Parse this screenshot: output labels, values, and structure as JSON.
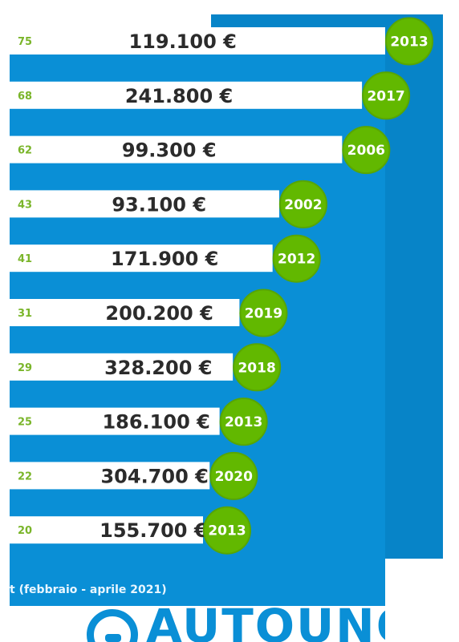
{
  "colors": {
    "panel": "#0a8fd6",
    "panel_side": "#0784c8",
    "bar": "#ffffff",
    "price_text": "#2b2b2b",
    "rank_text": "#7ab52a",
    "badge": "#62b800",
    "badge_text": "#ffffff"
  },
  "chart_data": {
    "type": "bar",
    "orientation": "horizontal",
    "rows": [
      {
        "rank": "75",
        "price": "119.100 €",
        "year": "2013"
      },
      {
        "rank": "68",
        "price": "241.800 €",
        "year": "2017"
      },
      {
        "rank": "62",
        "price": "99.300 €",
        "year": "2006"
      },
      {
        "rank": "43",
        "price": "93.100 €",
        "year": "2002"
      },
      {
        "rank": "41",
        "price": "171.900 €",
        "year": "2012"
      },
      {
        "rank": "31",
        "price": "200.200 €",
        "year": "2019"
      },
      {
        "rank": "29",
        "price": "328.200 €",
        "year": "2018"
      },
      {
        "rank": "25",
        "price": "186.100 €",
        "year": "2013"
      },
      {
        "rank": "22",
        "price": "304.700 €",
        "year": "2020"
      },
      {
        "rank": "20",
        "price": "155.700 €",
        "year": "2013"
      }
    ],
    "values": [
      75,
      68,
      62,
      43,
      41,
      31,
      29,
      25,
      22,
      20
    ]
  },
  "footnote": "t (febbraio - aprile 2021)",
  "logo": {
    "text": "AUTOUNO"
  }
}
